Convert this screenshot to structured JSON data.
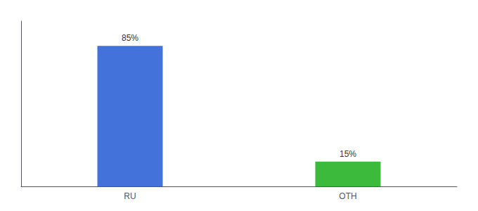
{
  "chart_data": {
    "type": "bar",
    "categories": [
      "RU",
      "OTH"
    ],
    "values": [
      85,
      15
    ],
    "value_labels": [
      "85%",
      "15%"
    ],
    "colors": [
      "#4472db",
      "#3cba3c"
    ],
    "ylim": [
      0,
      100
    ],
    "grid": false,
    "data_labels": true,
    "tick_labels": "x"
  }
}
